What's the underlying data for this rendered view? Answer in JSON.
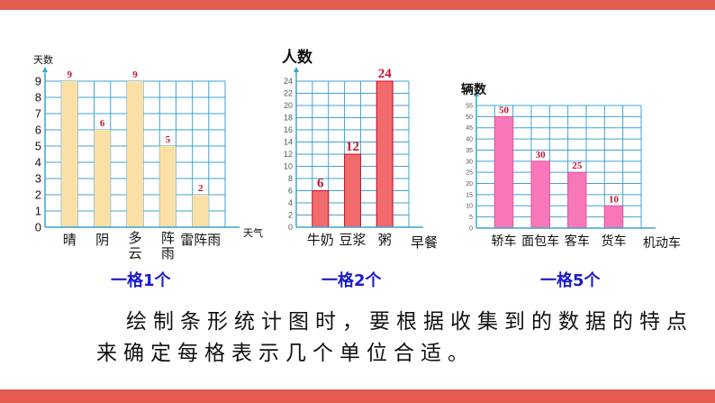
{
  "colors": {
    "accent_bar": "#e35a4f",
    "grid": "#3fa3d4",
    "value_label": "#c8102e",
    "caption": "#1a1acb"
  },
  "chart_data": [
    {
      "type": "bar",
      "ylabel": "天数",
      "xlabel": "天气",
      "categories": [
        "晴",
        "阴",
        "多云",
        "阵雨",
        "雷阵雨"
      ],
      "values": [
        9,
        6,
        9,
        5,
        2
      ],
      "ylim": [
        0,
        9
      ],
      "yticks": [
        0,
        1,
        2,
        3,
        4,
        5,
        6,
        7,
        8,
        9
      ],
      "grid": true,
      "bar_color": "#fbe0a6",
      "caption": "一格1个"
    },
    {
      "type": "bar",
      "ylabel": "人数",
      "xlabel": "早餐",
      "categories": [
        "牛奶",
        "豆浆",
        "粥"
      ],
      "values": [
        6,
        12,
        24
      ],
      "ylim": [
        0,
        24
      ],
      "yticks": [
        0,
        2,
        4,
        6,
        8,
        10,
        12,
        14,
        16,
        18,
        20,
        22,
        24
      ],
      "grid": true,
      "bar_color": "#f26b6b",
      "caption": "一格2个"
    },
    {
      "type": "bar",
      "ylabel": "辆数",
      "xlabel": "机动车",
      "categories": [
        "轿车",
        "面包车",
        "客车",
        "货车"
      ],
      "values": [
        50,
        30,
        25,
        10
      ],
      "ylim": [
        0,
        55
      ],
      "yticks": [
        0,
        5,
        10,
        15,
        20,
        25,
        30,
        35,
        40,
        45,
        50,
        55
      ],
      "grid": true,
      "bar_color": "#f777b9",
      "caption": "一格5个"
    }
  ],
  "text": {
    "line1": "绘制条形统计图时，要根据收集到的数据的特点",
    "line2": "来确定每格表示几个单位合适。"
  }
}
